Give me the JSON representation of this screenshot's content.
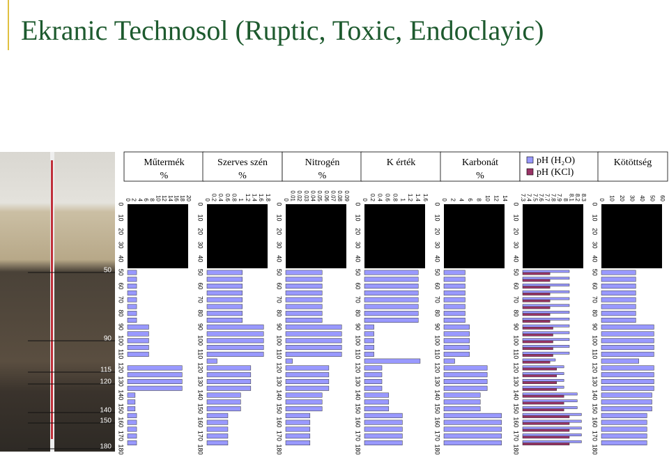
{
  "title": "Ekranic Technosol (Ruptic, Toxic, Endoclayic)",
  "profile": {
    "depth_labels": [
      50,
      90,
      115,
      120,
      140,
      150,
      180
    ]
  },
  "chart_data": [
    {
      "type": "bar",
      "title": "Műtermék",
      "unit": "%",
      "depths": [
        50,
        55,
        60,
        65,
        70,
        75,
        80,
        85,
        90,
        95,
        100,
        105,
        110,
        115,
        120,
        125,
        130,
        135,
        140,
        145,
        150,
        155,
        160,
        165,
        170,
        175
      ],
      "series": [
        {
          "color": "#9999ff",
          "values": [
            3,
            3,
            3,
            3,
            3,
            3,
            3,
            3,
            7,
            7,
            7,
            7,
            7,
            0,
            18,
            18,
            18,
            18,
            2.5,
            2.5,
            2.5,
            3,
            3,
            3,
            3,
            3
          ]
        }
      ],
      "xlim": [
        0,
        20
      ],
      "xticks": [
        0,
        2,
        4,
        6,
        8,
        10,
        12,
        14,
        16,
        18,
        20
      ],
      "ylim": [
        0,
        180
      ],
      "yticks": [
        0,
        10,
        20,
        30,
        40,
        50,
        60,
        70,
        80,
        90,
        100,
        110,
        120,
        130,
        140,
        150,
        160,
        170,
        180
      ]
    },
    {
      "type": "bar",
      "title": "Szerves szén",
      "unit": "%",
      "depths": [
        50,
        55,
        60,
        65,
        70,
        75,
        80,
        85,
        90,
        95,
        100,
        105,
        110,
        115,
        120,
        125,
        130,
        135,
        140,
        145,
        150,
        155,
        160,
        165,
        170,
        175
      ],
      "series": [
        {
          "color": "#9999ff",
          "values": [
            1.05,
            1.05,
            1.05,
            1.05,
            1.05,
            1.05,
            1.05,
            1.05,
            1.68,
            1.68,
            1.68,
            1.68,
            1.68,
            0.3,
            1.3,
            1.3,
            1.3,
            1.3,
            1.0,
            1.0,
            1.0,
            0.62,
            0.62,
            0.62,
            0.62,
            0.62
          ]
        }
      ],
      "xlim": [
        0,
        1.8
      ],
      "xticks": [
        0,
        0.2,
        0.4,
        0.6,
        0.8,
        1,
        1.2,
        1.4,
        1.6,
        1.8
      ],
      "ylim": [
        0,
        180
      ],
      "yticks": [
        0,
        10,
        20,
        30,
        40,
        50,
        60,
        70,
        80,
        90,
        100,
        110,
        120,
        130,
        140,
        150,
        160,
        170,
        180
      ]
    },
    {
      "type": "bar",
      "title": "Nitrogén",
      "unit": "%",
      "depths": [
        50,
        55,
        60,
        65,
        70,
        75,
        80,
        85,
        90,
        95,
        100,
        105,
        110,
        115,
        120,
        125,
        130,
        135,
        140,
        145,
        150,
        155,
        160,
        165,
        170,
        175
      ],
      "series": [
        {
          "color": "#9999ff",
          "values": [
            0.054,
            0.054,
            0.054,
            0.054,
            0.054,
            0.054,
            0.054,
            0.054,
            0.083,
            0.083,
            0.083,
            0.083,
            0.083,
            0.01,
            0.064,
            0.064,
            0.064,
            0.064,
            0.054,
            0.054,
            0.054,
            0.036,
            0.036,
            0.036,
            0.036,
            0.036
          ]
        }
      ],
      "xlim": [
        0,
        0.09
      ],
      "xticks": [
        0,
        0.01,
        0.02,
        0.03,
        0.04,
        0.05,
        0.06,
        0.07,
        0.08,
        0.09
      ],
      "ylim": [
        0,
        180
      ],
      "yticks": [
        0,
        10,
        20,
        30,
        40,
        50,
        60,
        70,
        80,
        90,
        100,
        110,
        120,
        130,
        140,
        150,
        160,
        170,
        180
      ]
    },
    {
      "type": "bar",
      "title": "K érték",
      "depths": [
        50,
        55,
        60,
        65,
        70,
        75,
        80,
        85,
        90,
        95,
        100,
        105,
        110,
        115,
        120,
        125,
        130,
        135,
        140,
        145,
        150,
        155,
        160,
        165,
        170,
        175
      ],
      "series": [
        {
          "color": "#9999ff",
          "values": [
            1.42,
            1.42,
            1.42,
            1.42,
            1.42,
            1.42,
            1.42,
            1.42,
            0.25,
            0.25,
            0.25,
            0.25,
            0.25,
            1.47,
            0.46,
            0.46,
            0.46,
            0.46,
            0.64,
            0.64,
            0.64,
            1.0,
            1.0,
            1.0,
            1.0,
            1.0
          ]
        }
      ],
      "xlim": [
        0,
        1.6
      ],
      "xticks": [
        0,
        0.2,
        0.4,
        0.6,
        0.8,
        1,
        1.2,
        1.4,
        1.6
      ],
      "ylim": [
        0,
        180
      ],
      "yticks": [
        0,
        10,
        20,
        30,
        40,
        50,
        60,
        70,
        80,
        90,
        100,
        110,
        120,
        130,
        140,
        150,
        160,
        170,
        180
      ]
    },
    {
      "type": "bar",
      "title": "Karbonát",
      "unit": "%",
      "depths": [
        50,
        55,
        60,
        65,
        70,
        75,
        80,
        85,
        90,
        95,
        100,
        105,
        110,
        115,
        120,
        125,
        130,
        135,
        140,
        145,
        150,
        155,
        160,
        165,
        170,
        175
      ],
      "series": [
        {
          "color": "#9999ff",
          "values": [
            4.9,
            4.9,
            4.9,
            4.9,
            4.9,
            4.9,
            4.9,
            4.9,
            5.9,
            5.9,
            5.9,
            5.9,
            5.9,
            2.5,
            10,
            10,
            10,
            10,
            8.4,
            8.4,
            8.4,
            13.3,
            13.3,
            13.3,
            13.3,
            13.3
          ]
        }
      ],
      "xlim": [
        0,
        14
      ],
      "xticks": [
        0,
        2,
        4,
        6,
        8,
        10,
        12,
        14
      ],
      "ylim": [
        0,
        180
      ],
      "yticks": [
        0,
        10,
        20,
        30,
        40,
        50,
        60,
        70,
        80,
        90,
        100,
        110,
        120,
        130,
        140,
        150,
        160,
        170,
        180
      ]
    },
    {
      "type": "bar",
      "depths": [
        50,
        55,
        60,
        65,
        70,
        75,
        80,
        85,
        90,
        95,
        100,
        105,
        110,
        115,
        120,
        125,
        130,
        135,
        140,
        145,
        150,
        155,
        160,
        165,
        170,
        175
      ],
      "series": [
        {
          "name": "pH (H₂O)",
          "color": "#9999ff",
          "values": [
            8.07,
            8.07,
            8.07,
            8.07,
            8.07,
            8.07,
            8.07,
            8.07,
            8.07,
            8.07,
            8.07,
            8.07,
            8.07,
            7.84,
            7.98,
            7.98,
            7.98,
            7.98,
            8.2,
            8.2,
            8.2,
            8.27,
            8.27,
            8.27,
            8.27,
            8.27
          ]
        },
        {
          "name": "pH (KCl)",
          "color": "#993366",
          "values": [
            7.75,
            7.75,
            7.75,
            7.75,
            7.75,
            7.75,
            7.75,
            7.75,
            7.8,
            7.8,
            7.8,
            7.8,
            7.8,
            7.75,
            7.86,
            7.86,
            7.86,
            7.86,
            7.98,
            7.98,
            7.98,
            8.07,
            8.07,
            8.07,
            8.07,
            8.07
          ]
        }
      ],
      "xlim": [
        7.3,
        8.3
      ],
      "xticks": [
        7.3,
        7.4,
        7.5,
        7.6,
        7.7,
        7.8,
        7.9,
        8,
        8.1,
        8.2,
        8.3
      ],
      "ylim": [
        0,
        180
      ],
      "yticks": [
        0,
        10,
        20,
        30,
        40,
        50,
        60,
        70,
        80,
        90,
        100,
        110,
        120,
        130,
        140,
        150,
        160,
        170,
        180
      ]
    },
    {
      "type": "bar",
      "title": "Kötöttség",
      "depths": [
        50,
        55,
        60,
        65,
        70,
        75,
        80,
        85,
        90,
        95,
        100,
        105,
        110,
        115,
        120,
        125,
        130,
        135,
        140,
        145,
        150,
        155,
        160,
        165,
        170,
        175
      ],
      "series": [
        {
          "color": "#9999ff",
          "values": [
            34,
            34,
            34,
            34,
            34,
            34,
            34,
            34,
            52,
            52,
            52,
            52,
            52,
            37,
            52,
            52,
            52,
            52,
            50,
            50,
            50,
            45,
            45,
            45,
            45,
            45
          ]
        }
      ],
      "xlim": [
        0,
        60
      ],
      "xticks": [
        0,
        10,
        20,
        30,
        40,
        50,
        60
      ],
      "ylim": [
        0,
        180
      ],
      "yticks": [
        0,
        10,
        20,
        30,
        40,
        50,
        60,
        70,
        80,
        90,
        100,
        110,
        120,
        130,
        140,
        150,
        160,
        170,
        180
      ]
    }
  ]
}
